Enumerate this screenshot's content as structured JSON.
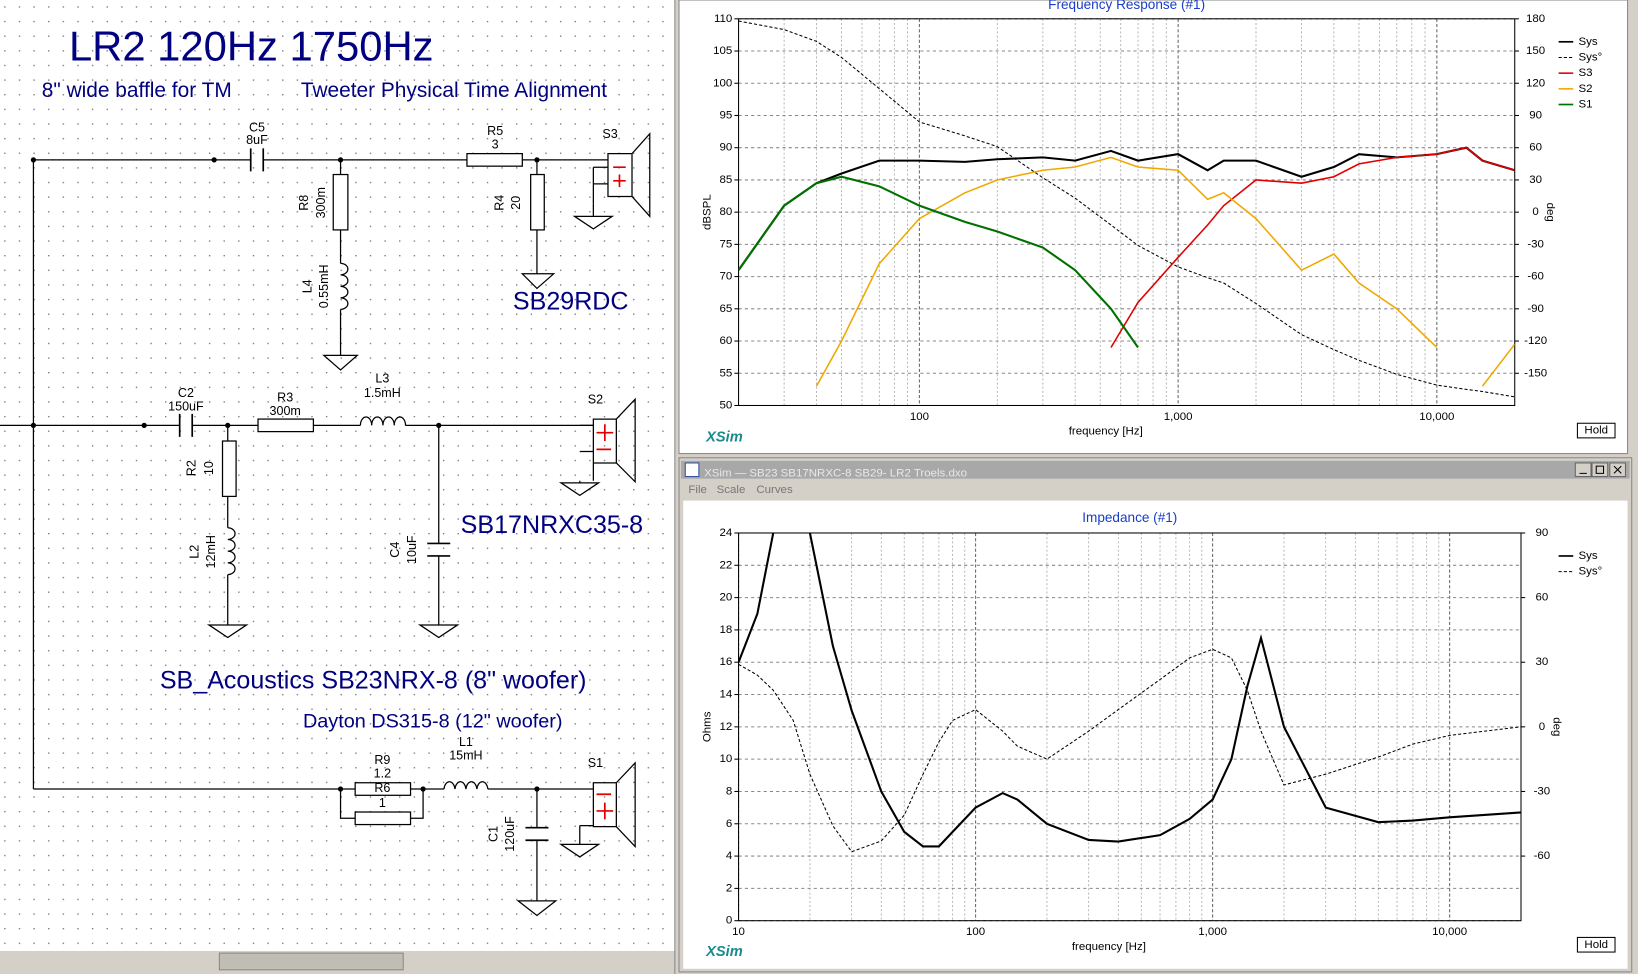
{
  "window": {
    "title": "XSim — SB23 SB17NRXC-8 SB29- LR2 Troels.dxo",
    "menu": [
      "File",
      "Scale",
      "Curves"
    ]
  },
  "schematic": {
    "title": "LR2 120Hz  1750Hz",
    "subtitle_left": "8\" wide baffle for TM",
    "subtitle_right": "Tweeter Physical Time Alignment",
    "components": [
      {
        "ref": "C5",
        "value": "8uF"
      },
      {
        "ref": "R5",
        "value": "3"
      },
      {
        "ref": "R8",
        "value": "300m"
      },
      {
        "ref": "R4",
        "value": "20"
      },
      {
        "ref": "L4",
        "value": "0.55mH"
      },
      {
        "ref": "S3"
      },
      {
        "ref": "C2",
        "value": "150uF"
      },
      {
        "ref": "R3",
        "value": "300m"
      },
      {
        "ref": "L3",
        "value": "1.5mH"
      },
      {
        "ref": "S2"
      },
      {
        "ref": "R2",
        "value": "10"
      },
      {
        "ref": "L2",
        "value": "12mH"
      },
      {
        "ref": "C4",
        "value": "10uF"
      },
      {
        "ref": "R9",
        "value": "1.2"
      },
      {
        "ref": "R6",
        "value": "1"
      },
      {
        "ref": "L1",
        "value": "15mH"
      },
      {
        "ref": "S1"
      },
      {
        "ref": "C1",
        "value": "120uF"
      }
    ],
    "drivers": [
      "SB29RDC",
      "SB17NRXC35-8",
      "SB_Acoustics SB23NRX-8  (8\" woofer)",
      "Dayton DS315-8 (12\" woofer)"
    ]
  },
  "chart_data": [
    {
      "type": "line",
      "title": "Frequency Response (#1)",
      "xlabel": "frequency [Hz]",
      "ylabel": "dBSPL",
      "y2label": "deg",
      "watermark": "XSim",
      "button": "Hold",
      "xscale": "log",
      "grid": true,
      "legend": "right",
      "xlim": [
        20,
        20000
      ],
      "xticks": [
        100,
        {
          "value": 1000,
          "label": "1,000"
        },
        {
          "value": 10000,
          "label": "10,000"
        }
      ],
      "ylim": [
        50,
        110
      ],
      "yticks": [
        50,
        55,
        60,
        65,
        70,
        75,
        80,
        85,
        90,
        95,
        100,
        105,
        110
      ],
      "y2lim": [
        -180,
        180
      ],
      "y2ticks": [
        -150,
        -120,
        -90,
        -60,
        -30,
        0,
        30,
        60,
        90,
        120,
        150,
        180
      ],
      "x": [
        20,
        30,
        40,
        50,
        70,
        100,
        150,
        200,
        300,
        400,
        550,
        700,
        1000,
        1300,
        1500,
        2000,
        3000,
        4000,
        5000,
        7000,
        10000,
        13000,
        15000,
        20000
      ],
      "series": [
        {
          "name": "Sys",
          "color": "#000000",
          "line_width": 2,
          "values": [
            71,
            81,
            84.5,
            86,
            88,
            88,
            87.8,
            88.2,
            88.5,
            88,
            89.5,
            88,
            89,
            86.5,
            88,
            88,
            85.5,
            87,
            89,
            88.5,
            89,
            90,
            88,
            86.5
          ]
        },
        {
          "name": "Sys°",
          "color": "#000000",
          "line_width": 1,
          "dashed": true,
          "axis": "y2",
          "values": [
            178,
            170,
            159,
            144,
            115,
            84,
            71,
            61,
            32,
            13,
            -12,
            -31,
            -51,
            -61,
            -66,
            -85,
            -114,
            -128,
            -138,
            -151,
            -161,
            -165,
            -167,
            -172
          ]
        },
        {
          "name": "S3",
          "color": "#e00000",
          "line_width": 1.5,
          "values": [
            null,
            null,
            null,
            null,
            null,
            null,
            null,
            null,
            null,
            null,
            59,
            66,
            73,
            78,
            81,
            85,
            84.5,
            85.5,
            87.5,
            88.5,
            89,
            90,
            88,
            86.5
          ]
        },
        {
          "name": "S2",
          "color": "#f0a800",
          "line_width": 1.5,
          "values": [
            null,
            null,
            53,
            60,
            72,
            79,
            83,
            85,
            86.5,
            87,
            88.5,
            87,
            86.5,
            82,
            83,
            79,
            71,
            73.5,
            69,
            65,
            59,
            null,
            53,
            59.5
          ]
        },
        {
          "name": "S1",
          "color": "#007000",
          "line_width": 2,
          "values": [
            71,
            81,
            84.5,
            85.5,
            84,
            81,
            78.5,
            77,
            74.5,
            71,
            65,
            59,
            null,
            null,
            null,
            null,
            null,
            null,
            null,
            null,
            null,
            null,
            null,
            null
          ]
        }
      ]
    },
    {
      "type": "line",
      "title": "Impedance (#1)",
      "xlabel": "frequency [Hz]",
      "ylabel": "Ohms",
      "y2label": "deg",
      "watermark": "XSim",
      "button": "Hold",
      "xscale": "log",
      "grid": true,
      "legend": "right",
      "xlim": [
        10,
        20000
      ],
      "xticks": [
        10,
        100,
        {
          "value": 1000,
          "label": "1,000"
        },
        {
          "value": 10000,
          "label": "10,000"
        }
      ],
      "ylim": [
        0,
        24
      ],
      "yticks": [
        0,
        2,
        4,
        6,
        8,
        10,
        12,
        14,
        16,
        18,
        20,
        22,
        24
      ],
      "y2lim": [
        -90,
        90
      ],
      "y2ticks": [
        -60,
        -30,
        0,
        30,
        60,
        90
      ],
      "x": [
        10,
        12,
        14,
        17,
        20,
        25,
        30,
        40,
        50,
        60,
        70,
        80,
        100,
        130,
        150,
        200,
        300,
        400,
        600,
        800,
        1000,
        1200,
        1400,
        1600,
        2000,
        3000,
        5000,
        7000,
        10000,
        20000
      ],
      "series": [
        {
          "name": "Sys",
          "color": "#000000",
          "line_width": 2,
          "values": [
            16,
            19,
            24,
            null,
            24,
            17,
            13,
            8,
            5.5,
            4.6,
            4.6,
            5.5,
            7,
            7.9,
            7.5,
            6,
            5,
            4.9,
            5.3,
            6.3,
            7.5,
            10,
            14.5,
            17.5,
            12,
            7,
            6.1,
            6.2,
            6.4,
            6.7
          ]
        },
        {
          "name": "Sys°",
          "color": "#000000",
          "line_width": 1,
          "dashed": true,
          "axis": "y2",
          "values": [
            29,
            24,
            17,
            3,
            -22,
            -46,
            -58,
            -53,
            -41,
            -22,
            -7,
            3,
            8,
            -2,
            -9,
            -15,
            -2,
            8,
            22,
            32,
            36,
            32,
            17,
            -2,
            -27,
            -22,
            -14,
            -8,
            -4,
            0
          ]
        }
      ]
    }
  ]
}
